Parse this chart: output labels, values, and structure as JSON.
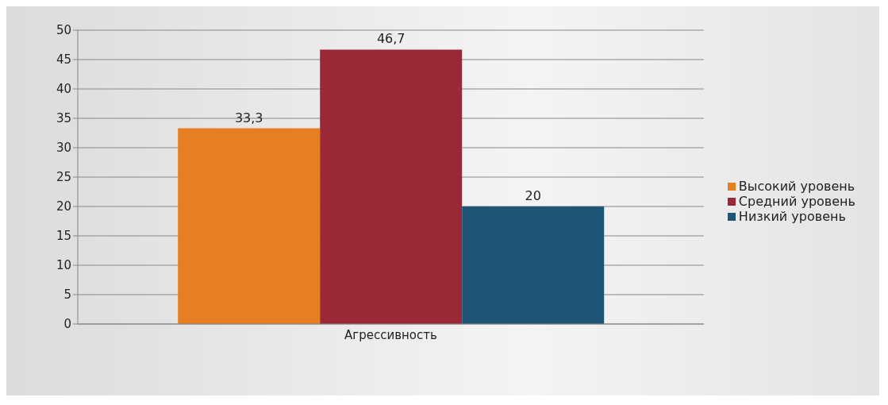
{
  "chart_data": {
    "type": "bar",
    "categories": [
      "Агрессивность"
    ],
    "series": [
      {
        "name": "Высокий уровень",
        "color": "#e67e22",
        "values": [
          33.3
        ],
        "value_labels": [
          "33,3"
        ]
      },
      {
        "name": "Средний уровень",
        "color": "#9b2836",
        "values": [
          46.7
        ],
        "value_labels": [
          "46,7"
        ]
      },
      {
        "name": "Низкий уровень",
        "color": "#1f5577",
        "values": [
          20
        ],
        "value_labels": [
          "20"
        ]
      }
    ],
    "ylim": [
      0,
      50
    ],
    "yticks": [
      0,
      5,
      10,
      15,
      20,
      25,
      30,
      35,
      40,
      45,
      50
    ],
    "grid": "y",
    "legend": "right"
  }
}
